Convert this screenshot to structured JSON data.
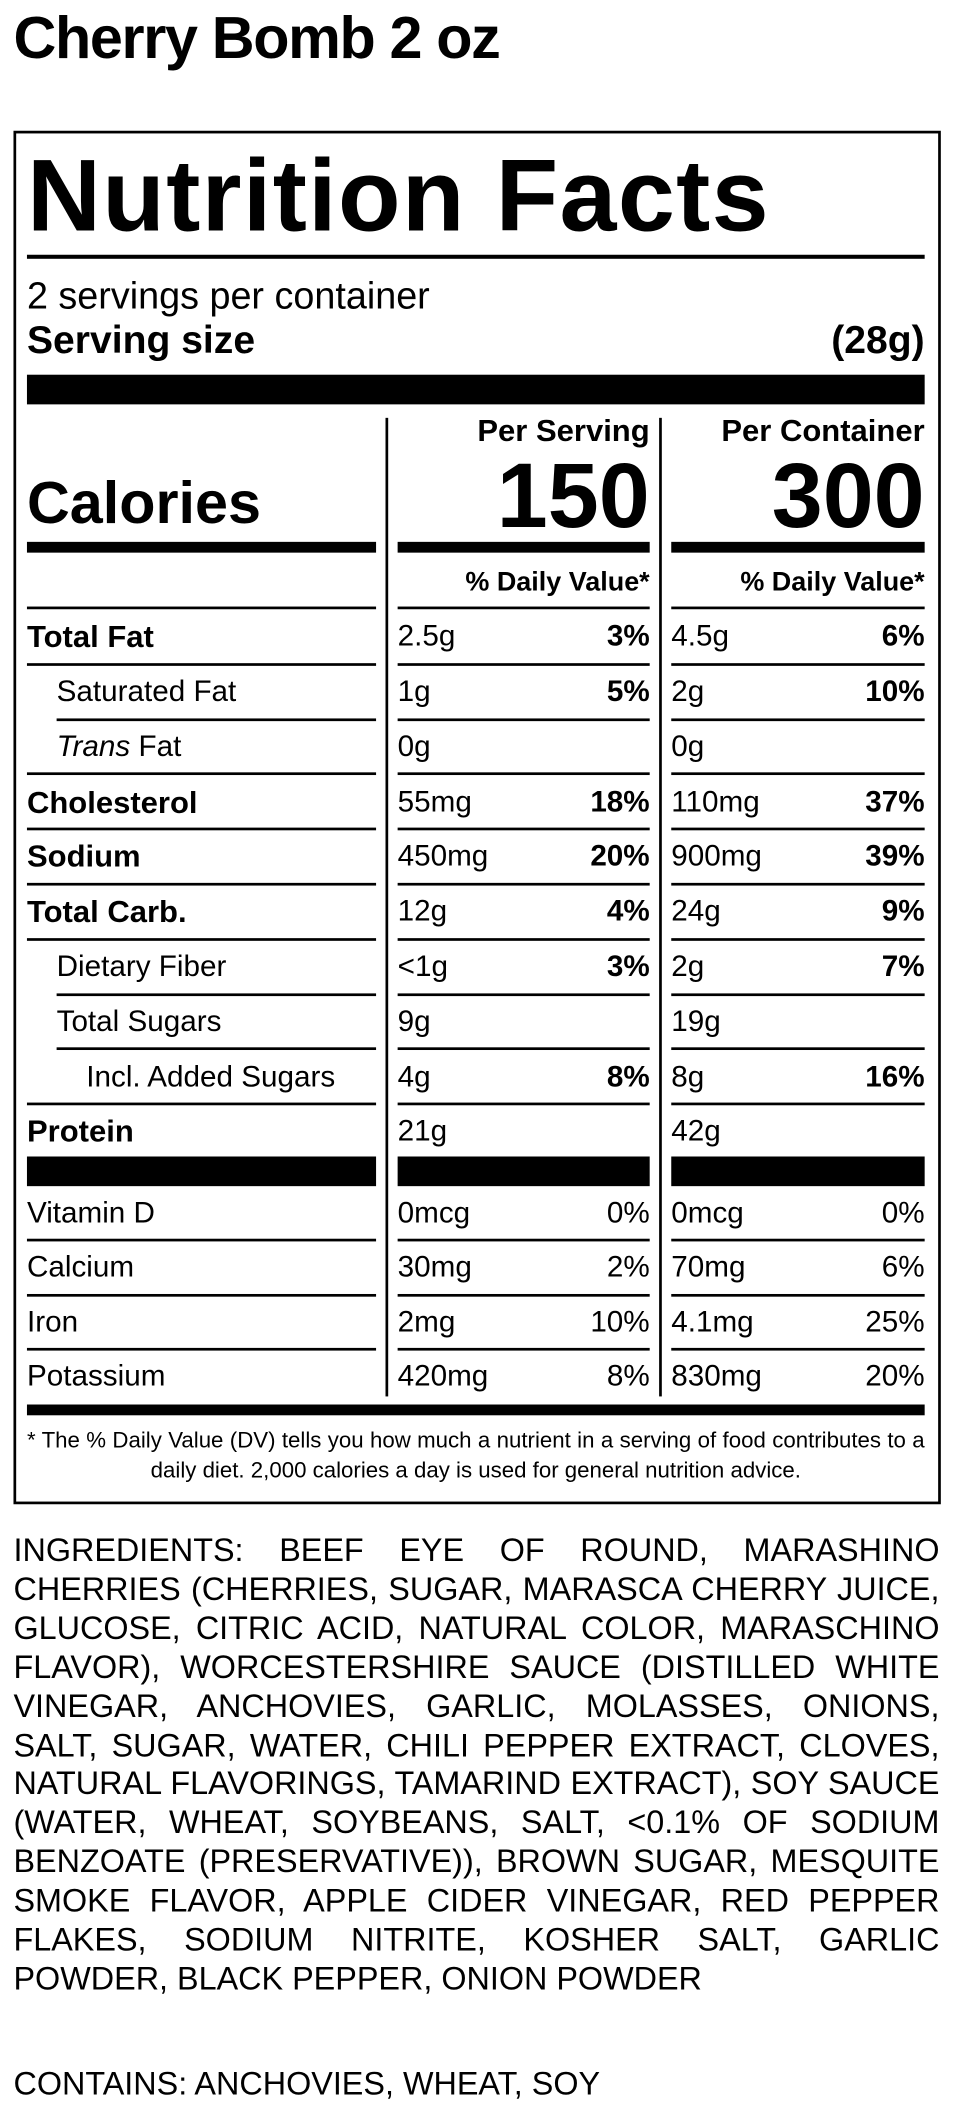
{
  "title": "Cherry Bomb 2 oz",
  "label": {
    "heading": "Nutrition Facts",
    "servings": "2 servings per container",
    "serving_size_label": "Serving size",
    "serving_size": "(28g)",
    "columns": [
      "Per Serving",
      "Per Container"
    ],
    "calories_label": "Calories",
    "calories": [
      150,
      300
    ],
    "dv_header": [
      "% Daily Value*",
      "% Daily Value*"
    ],
    "nutrients": [
      {
        "name": "Total Fat",
        "per_serving": [
          "2.5g",
          "3%"
        ],
        "per_container": [
          "4.5g",
          "6%"
        ]
      },
      {
        "name": "Saturated Fat",
        "per_serving": [
          "1g",
          "5%"
        ],
        "per_container": [
          "2g",
          "10%"
        ]
      },
      {
        "name": [
          "Trans",
          "Fat"
        ],
        "per_serving": [
          "0g"
        ],
        "per_container": [
          "0g"
        ]
      },
      {
        "name": "Cholesterol",
        "per_serving": [
          "55mg",
          "18%"
        ],
        "per_container": [
          "110mg",
          "37%"
        ]
      },
      {
        "name": "Sodium",
        "per_serving": [
          "450mg",
          "20%"
        ],
        "per_container": [
          "900mg",
          "39%"
        ]
      },
      {
        "name": "Total Carb.",
        "per_serving": [
          "12g",
          "4%"
        ],
        "per_container": [
          "24g",
          "9%"
        ]
      },
      {
        "name": "Dietary Fiber",
        "per_serving": [
          "<1g",
          "3%"
        ],
        "per_container": [
          "2g",
          "7%"
        ]
      },
      {
        "name": "Total Sugars",
        "per_serving": [
          "9g"
        ],
        "per_container": [
          "19g"
        ]
      },
      {
        "name": "Incl. Added Sugars",
        "per_serving": [
          "4g",
          "8%"
        ],
        "per_container": [
          "8g",
          "16%"
        ]
      },
      {
        "name": "Protein",
        "per_serving": [
          "21g"
        ],
        "per_container": [
          "42g"
        ]
      }
    ],
    "vitamins": [
      {
        "name": "Vitamin D",
        "per_serving": [
          "0mcg",
          "0%"
        ],
        "per_container": [
          "0mcg",
          "0%"
        ]
      },
      {
        "name": "Calcium",
        "per_serving": [
          "30mg",
          "2%"
        ],
        "per_container": [
          "70mg",
          "6%"
        ]
      },
      {
        "name": "Iron",
        "per_serving": [
          "2mg",
          "10%"
        ],
        "per_container": [
          "4.1mg",
          "25%"
        ]
      },
      {
        "name": "Potassium",
        "per_serving": [
          "420mg",
          "8%"
        ],
        "per_container": [
          "830mg",
          "20%"
        ]
      }
    ],
    "footnote": "* The % Daily Value (DV) tells you how much a nutrient in a serving of food contributes to a daily diet. 2,000 calories a day is used for general nutrition advice."
  },
  "ingredients": "INGREDIENTS: BEEF EYE OF ROUND, MARASHINO CHERRIES (CHERRIES, SUGAR, MARASCA CHERRY JUICE, GLUCOSE, CITRIC ACID, NATURAL COLOR, MARASCHINO FLAVOR), WORCESTERSHIRE SAUCE (DISTILLED WHITE VINEGAR, ANCHOVIES, GARLIC, MOLASSES, ONIONS, SALT, SUGAR, WATER, CHILI PEPPER EXTRACT, CLOVES, NATURAL FLAVORINGS, TAMARIND EXTRACT), SOY SAUCE (WATER, WHEAT, SOYBEANS, SALT, <0.1% OF SODIUM BENZOATE (PRESERVATIVE)), BROWN SUGAR, MESQUITE SMOKE FLAVOR, APPLE CIDER VINEGAR, RED PEPPER FLAKES, SODIUM NITRITE, KOSHER SALT, GARLIC POWDER, BLACK PEPPER, ONION POWDER",
  "contains": "CONTAINS: ANCHOVIES, WHEAT, SOY"
}
